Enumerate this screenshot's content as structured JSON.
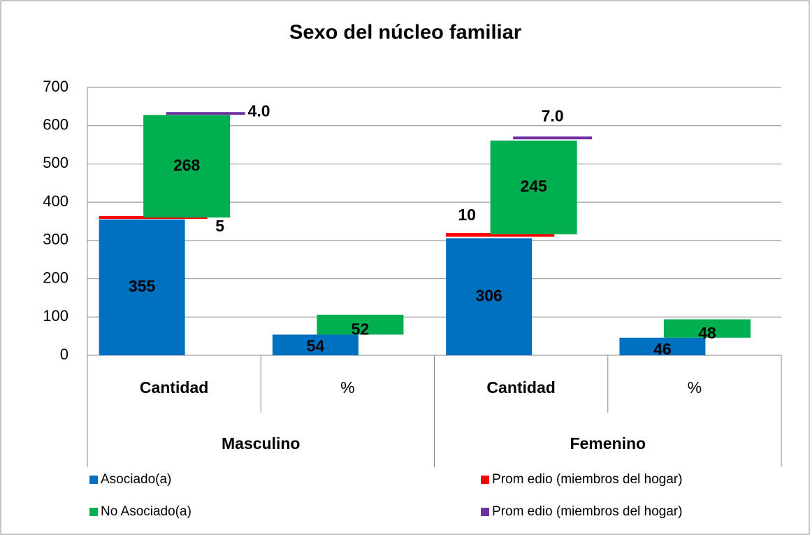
{
  "chart_data": {
    "type": "bar",
    "stacked": true,
    "title": "Sexo del núcleo familiar",
    "categories": [
      "Cantidad",
      "%",
      "Cantidad",
      "%"
    ],
    "category_groups": [
      "Masculino",
      "Femenino"
    ],
    "series": [
      {
        "name": "Asociado(a)",
        "color": "#0070c0",
        "values": [
          355,
          54,
          306,
          46
        ]
      },
      {
        "name": "Prom edio (miembros del hogar)",
        "color": "#ff0000",
        "values": [
          5,
          null,
          10,
          null
        ]
      },
      {
        "name": "No Asociado(a)",
        "color": "#00b050",
        "values": [
          268,
          52,
          245,
          48
        ]
      },
      {
        "name": "Prom edio (miembros del hogar)",
        "color": "#7030a0",
        "values": [
          4,
          null,
          7,
          null
        ],
        "value_labels": [
          "4.0",
          null,
          "7.0",
          null
        ]
      }
    ],
    "ylim": [
      0,
      700
    ],
    "yticks": [
      0,
      100,
      200,
      300,
      400,
      500,
      600,
      700
    ],
    "grid": true
  }
}
